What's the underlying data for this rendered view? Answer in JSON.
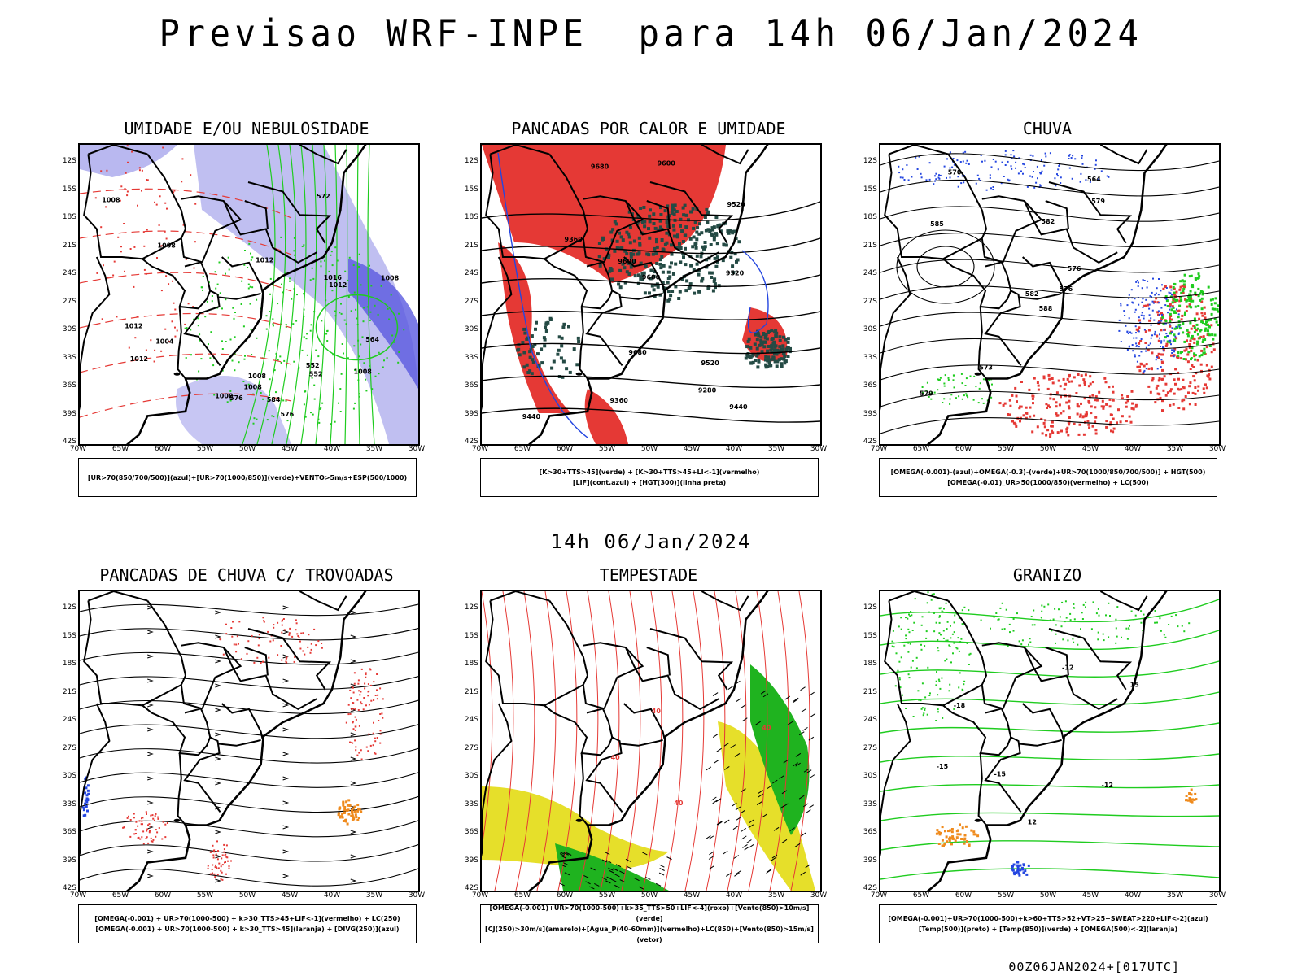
{
  "header": {
    "title": "Previsao WRF-INPE  para 14h 06/Jan/2024",
    "mid_time": "14h 06/Jan/2024",
    "run_label": "00Z06JAN2024+[017UTC]"
  },
  "axes": {
    "lat_ticks": [
      "12S",
      "15S",
      "18S",
      "21S",
      "24S",
      "27S",
      "30S",
      "33S",
      "36S",
      "39S",
      "42S"
    ],
    "lon_ticks": [
      "70W",
      "65W",
      "60W",
      "55W",
      "50W",
      "45W",
      "40W",
      "35W",
      "30W"
    ]
  },
  "panels": [
    {
      "title": "UMIDADE E/OU NEBULOSIDADE",
      "legend": [
        "[UR>70(850/700/500)](azul)+[UR>70(1000/850)](verde)+VENTO>5m/s+ESP(500/1000)"
      ],
      "contour_labels": [
        "1008",
        "1008",
        "1012",
        "1008",
        "1008",
        "1012",
        "1008",
        "1012",
        "1016",
        "1008",
        "1004",
        "1008",
        "576",
        "576",
        "572",
        "584",
        "552",
        "552",
        "564",
        "1012"
      ]
    },
    {
      "title": "PANCADAS POR CALOR E UMIDADE",
      "legend": [
        "[K>30+TTS>45](verde) + [K>30+TTS>45+LI<-1](vermelho)",
        "[LIF](cont.azul) + [HGT(300)](linha preta)"
      ],
      "contour_labels": [
        "9680",
        "9680",
        "9600",
        "9600",
        "9520",
        "9520",
        "9440",
        "9440",
        "9360",
        "9360",
        "9280",
        "9600",
        "9520"
      ]
    },
    {
      "title": "CHUVA",
      "legend": [
        "[OMEGA(-0.001)-(azul)+OMEGA(-0.3)-(verde)+UR>70(1000/850/700/500)] + HGT(500)",
        "[OMEGA(-0.01)_UR>50(1000/850)(vermelho) + LC(500)"
      ],
      "contour_labels": [
        "588",
        "585",
        "582",
        "579",
        "576",
        "573",
        "564",
        "582",
        "579",
        "576",
        "570"
      ]
    },
    {
      "title": "PANCADAS DE CHUVA C/ TROVOADAS",
      "legend": [
        "[OMEGA(-0.001) + UR>70(1000-500) + k>30_TTS>45+LIF<-1](vermelho) + LC(250)",
        "[OMEGA(-0.001) + UR>70(1000-500) + k>30_TTS>45](laranja) + [DIVG(250)](azul)"
      ],
      "contour_labels": []
    },
    {
      "title": "TEMPESTADE",
      "legend": [
        "[OMEGA(-0.001)+UR>70(1000-500)+k>35_TTS>50+LIF<-4](roxo)+[Vento(850)>10m/s](verde)",
        "[CJ(250)>30m/s](amarelo)+[Agua_P(40-60mm)](vermelho)+LC(850)+[Vento(850)>15m/s](vetor)"
      ],
      "contour_labels": [
        "40",
        "40",
        "40",
        "40"
      ]
    },
    {
      "title": "GRANIZO",
      "legend": [
        "[OMEGA(-0.001)+UR>70(1000-500)+k>60+TTS>52+VT>25+SWEAT>220+LIF<-2](azul)",
        "[Temp(500)](preto) + [Temp(850)](verde) + [OMEGA(500)<-2](laranja)"
      ],
      "contour_labels": [
        "-12",
        "-12",
        "-15",
        "-15",
        "-18",
        "12",
        "15"
      ]
    }
  ]
}
